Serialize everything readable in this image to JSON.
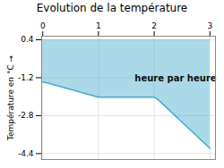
{
  "chart_data": {
    "type": "line",
    "title": "Evolution de la température",
    "y_label": "Température en °C",
    "x": [
      0,
      0.08,
      1.0,
      2.0,
      2.08,
      3.0
    ],
    "values": [
      -1.38,
      -1.42,
      -2.02,
      -2.02,
      -2.15,
      -4.18
    ],
    "fill_to": 0.4,
    "color": "#44aacc",
    "xlim": [
      -0.02,
      3.1
    ],
    "xticks": [
      0,
      1,
      2,
      3
    ],
    "ylim": [
      -4.65,
      0.55
    ],
    "yticks": [
      0.4,
      -1.2,
      -2.8,
      -4.4
    ],
    "grid": true,
    "annotations": [
      {
        "text": "heure par heure",
        "x": 1.65,
        "y": -1.1
      }
    ]
  }
}
